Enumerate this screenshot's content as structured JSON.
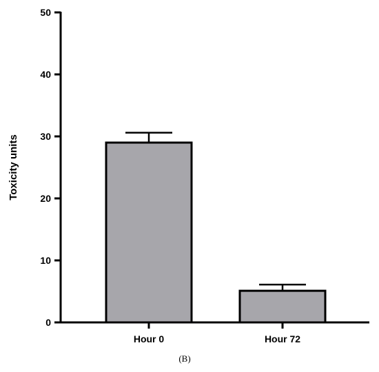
{
  "chart_data": {
    "type": "bar",
    "categories": [
      "Hour 0",
      "Hour 72"
    ],
    "values": [
      29,
      5.1
    ],
    "error": [
      1.6,
      1.0
    ],
    "title": "",
    "xlabel": "",
    "ylabel": "Toxicity units",
    "ylim": [
      0,
      50
    ],
    "yticks": [
      0,
      10,
      20,
      30,
      40,
      50
    ],
    "bar_color": "#a7a6ab",
    "grid": false,
    "panel_label": "(B)"
  }
}
